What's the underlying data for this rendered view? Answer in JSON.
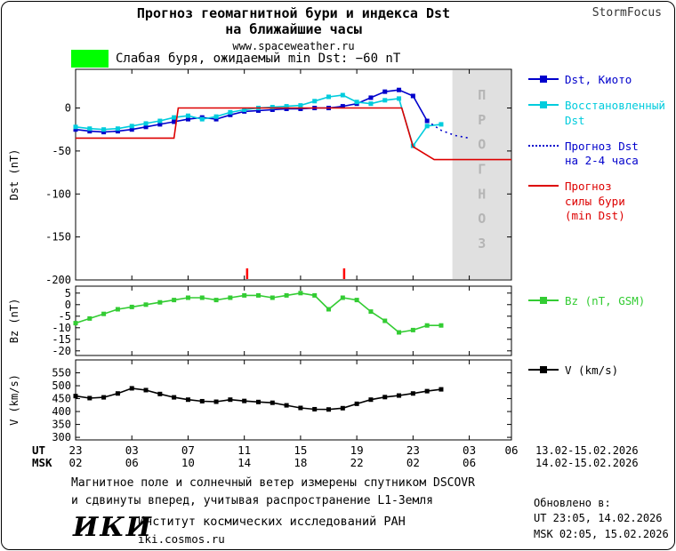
{
  "header": {
    "title_line1": "Прогноз геомагнитной бури и индекса Dst",
    "title_line2": "на ближайшие часы",
    "site": "www.spaceweather.ru",
    "brand": "StormFocus"
  },
  "alert": {
    "text": "Слабая буря, ожидаемый min Dst: −60 nT",
    "color": "#00ff00"
  },
  "chart_data": [
    {
      "type": "line",
      "ylabel": "Dst (nT)",
      "ylim": [
        -200,
        45
      ],
      "yticks": [
        0,
        -50,
        -100,
        -150,
        -200
      ],
      "xlim": [
        0,
        31
      ],
      "grid": false,
      "legend_position": "right",
      "band": {
        "from": 26.8,
        "to": 31,
        "color": "#e0e0e0",
        "label": "ПРОГНОЗ",
        "label_color": "#b5b5b5"
      },
      "event_marks": {
        "color": "#ff0000",
        "x": [
          12.2,
          19.1
        ]
      },
      "series": [
        {
          "name": "dst-kyoto",
          "legend": "Dst, Киото",
          "color": "#0000cc",
          "marker": true,
          "x": [
            0,
            1,
            2,
            3,
            4,
            5,
            6,
            7,
            8,
            9,
            10,
            11,
            12,
            13,
            14,
            15,
            16,
            17,
            18,
            19,
            20,
            21,
            22,
            23,
            24,
            25
          ],
          "y": [
            -25,
            -27,
            -28,
            -27,
            -25,
            -22,
            -19,
            -16,
            -13,
            -11,
            -13,
            -8,
            -4,
            -3,
            -2,
            -1,
            -1,
            0,
            0,
            2,
            5,
            12,
            19,
            21,
            14,
            -15
          ]
        },
        {
          "name": "dst-restored",
          "legend": "Восстановленный\nDst",
          "color": "#00ccdd",
          "marker": true,
          "x": [
            0,
            1,
            2,
            3,
            4,
            5,
            6,
            7,
            8,
            9,
            10,
            11,
            12,
            13,
            14,
            15,
            16,
            17,
            18,
            19,
            20,
            21,
            22,
            23,
            24,
            25,
            26
          ],
          "y": [
            -22,
            -24,
            -25,
            -24,
            -21,
            -18,
            -15,
            -11,
            -9,
            -13,
            -10,
            -5,
            -2,
            0,
            1,
            2,
            3,
            8,
            13,
            15,
            7,
            5,
            9,
            11,
            -44,
            -21,
            -19
          ]
        },
        {
          "name": "dst-forecast-2-4h",
          "legend": "Прогноз Dst\nна 2-4 часа",
          "color": "#0000cc",
          "marker": false,
          "dash": "2 4",
          "x": [
            25,
            26,
            27,
            28
          ],
          "y": [
            -15,
            -26,
            -32,
            -35
          ]
        },
        {
          "name": "storm-strength-forecast",
          "legend": "Прогноз\nсилы бури\n(min Dst)",
          "color": "#dd0000",
          "marker": false,
          "x": [
            0,
            7,
            7.3,
            23.2,
            24,
            25.5,
            31
          ],
          "y": [
            -35,
            -35,
            0,
            0,
            -45,
            -60,
            -60
          ]
        }
      ]
    },
    {
      "type": "line",
      "ylabel": "Bz (nT)",
      "ylim": [
        -22,
        8
      ],
      "yticks": [
        5,
        0,
        -5,
        -10,
        -15,
        -20
      ],
      "xlim": [
        0,
        31
      ],
      "series": [
        {
          "name": "bz-gsm",
          "legend": "Bz (nT, GSM)",
          "color": "#33cc33",
          "marker": true,
          "x": [
            0,
            1,
            2,
            3,
            4,
            5,
            6,
            7,
            8,
            9,
            10,
            11,
            12,
            13,
            14,
            15,
            16,
            17,
            18,
            19,
            20,
            21,
            22,
            23,
            24,
            25,
            26
          ],
          "y": [
            -8,
            -6,
            -4,
            -2,
            -1,
            0,
            1,
            2,
            3,
            3,
            2,
            3,
            4,
            4,
            3,
            4,
            5,
            4,
            -2,
            3,
            2,
            -3,
            -7,
            -12,
            -11,
            -9,
            -9
          ]
        }
      ]
    },
    {
      "type": "line",
      "ylabel": "V (km/s)",
      "ylim": [
        290,
        600
      ],
      "yticks": [
        550,
        500,
        450,
        400,
        350,
        300
      ],
      "xlim": [
        0,
        31
      ],
      "series": [
        {
          "name": "solar-wind-speed",
          "legend": "V (km/s)",
          "color": "#000000",
          "marker": true,
          "x": [
            0,
            1,
            2,
            3,
            4,
            5,
            6,
            7,
            8,
            9,
            10,
            11,
            12,
            13,
            14,
            15,
            16,
            17,
            18,
            19,
            20,
            21,
            22,
            23,
            24,
            25,
            26
          ],
          "y": [
            460,
            452,
            455,
            470,
            490,
            483,
            468,
            455,
            446,
            440,
            438,
            446,
            441,
            437,
            434,
            424,
            414,
            409,
            408,
            413,
            430,
            446,
            456,
            462,
            470,
            479,
            486
          ]
        }
      ]
    }
  ],
  "xaxis": {
    "ut_label": "UT",
    "msk_label": "MSK",
    "tick_hours": [
      0,
      4,
      8,
      12,
      16,
      20,
      24,
      28,
      31
    ],
    "ut_ticks": [
      "23",
      "03",
      "07",
      "11",
      "15",
      "19",
      "23",
      "03",
      "06"
    ],
    "msk_ticks": [
      "02",
      "06",
      "10",
      "14",
      "18",
      "22",
      "02",
      "06"
    ],
    "ut_dates": "13.02-15.02.2026",
    "msk_dates": "14.02-15.02.2026"
  },
  "footer": {
    "note_line1": "Магнитное поле и солнечный ветер измерены спутником DSCOVR",
    "note_line2": "и сдвинуты вперед, учитывая распространение L1-Земля",
    "logo": "ИКИ",
    "institute": "Институт космических исследований РАН",
    "institute_url": "iki.cosmos.ru",
    "updated_label": "Обновлено в:",
    "updated_ut": "UT  23:05, 14.02.2026",
    "updated_msk": "MSK 02:05, 15.02.2026"
  }
}
